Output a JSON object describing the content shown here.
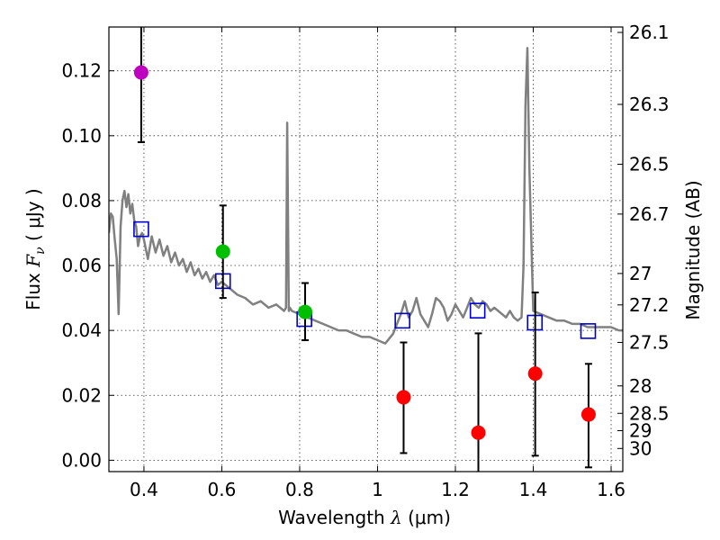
{
  "chart_data": {
    "type": "scatter",
    "xlabel_left": "Wavelength  ",
    "xlabel_lambda": "λ",
    "xlabel_unit": " (μm)",
    "ylabel_main": "Flux  ",
    "ylabel_symbol": "F",
    "ylabel_sub": "ν",
    "ylabel_unit": "  ( μJy )",
    "y2label": "Magnitude (AB)",
    "xlim": [
      0.31,
      1.63
    ],
    "ylim": [
      -0.0035,
      0.1335
    ],
    "xticks": [
      0.4,
      0.6,
      0.8,
      1.0,
      1.2,
      1.4,
      1.6
    ],
    "xtick_labels": [
      "0.4",
      "0.6",
      "0.8",
      "1",
      "1.2",
      "1.4",
      "1.6"
    ],
    "yticks": [
      0.0,
      0.02,
      0.04,
      0.06,
      0.08,
      0.1,
      0.12
    ],
    "ytick_labels": [
      "0.00",
      "0.02",
      "0.04",
      "0.06",
      "0.08",
      "0.10",
      "0.12"
    ],
    "mag_ticks": [
      26.1,
      26.3,
      26.5,
      26.7,
      27,
      27.2,
      27.5,
      28,
      28.5,
      29,
      30
    ],
    "mag_tick_labels": [
      "26.1",
      "26.3",
      "26.5",
      "26.7",
      "27",
      "27.2",
      "27.5",
      "28",
      "28.5",
      "29",
      "30"
    ],
    "grid": true,
    "colors": {
      "model": "#808080",
      "model_points": "#0000cc",
      "magenta": "#bf00bf",
      "green": "#00bf00",
      "red": "#ff0000",
      "errorbar": "#000000"
    },
    "series": [
      {
        "name": "model_spectrum",
        "style": "line",
        "x": [
          0.31,
          0.315,
          0.32,
          0.325,
          0.33,
          0.335,
          0.34,
          0.345,
          0.35,
          0.355,
          0.36,
          0.365,
          0.37,
          0.375,
          0.38,
          0.385,
          0.39,
          0.395,
          0.4,
          0.41,
          0.42,
          0.43,
          0.44,
          0.45,
          0.46,
          0.47,
          0.48,
          0.49,
          0.5,
          0.51,
          0.52,
          0.53,
          0.54,
          0.55,
          0.56,
          0.57,
          0.58,
          0.59,
          0.6,
          0.62,
          0.64,
          0.66,
          0.68,
          0.7,
          0.72,
          0.74,
          0.76,
          0.765,
          0.768,
          0.772,
          0.775,
          0.78,
          0.8,
          0.82,
          0.84,
          0.86,
          0.88,
          0.9,
          0.92,
          0.94,
          0.96,
          0.98,
          1.0,
          1.02,
          1.04,
          1.05,
          1.06,
          1.07,
          1.08,
          1.09,
          1.1,
          1.11,
          1.12,
          1.13,
          1.14,
          1.15,
          1.16,
          1.17,
          1.18,
          1.19,
          1.2,
          1.21,
          1.22,
          1.23,
          1.24,
          1.25,
          1.26,
          1.27,
          1.28,
          1.29,
          1.3,
          1.31,
          1.32,
          1.33,
          1.34,
          1.35,
          1.36,
          1.37,
          1.375,
          1.38,
          1.385,
          1.39,
          1.4,
          1.42,
          1.44,
          1.46,
          1.48,
          1.5,
          1.52,
          1.54,
          1.56,
          1.58,
          1.6,
          1.62,
          1.63
        ],
        "y": [
          0.07,
          0.076,
          0.075,
          0.068,
          0.062,
          0.045,
          0.072,
          0.08,
          0.083,
          0.078,
          0.082,
          0.076,
          0.079,
          0.074,
          0.072,
          0.066,
          0.069,
          0.07,
          0.068,
          0.062,
          0.069,
          0.064,
          0.068,
          0.063,
          0.066,
          0.061,
          0.064,
          0.06,
          0.062,
          0.058,
          0.061,
          0.057,
          0.059,
          0.056,
          0.058,
          0.055,
          0.057,
          0.054,
          0.055,
          0.053,
          0.051,
          0.05,
          0.048,
          0.049,
          0.047,
          0.048,
          0.046,
          0.047,
          0.104,
          0.046,
          0.047,
          0.046,
          0.045,
          0.044,
          0.043,
          0.042,
          0.041,
          0.04,
          0.04,
          0.039,
          0.038,
          0.038,
          0.037,
          0.036,
          0.039,
          0.042,
          0.045,
          0.049,
          0.044,
          0.046,
          0.05,
          0.045,
          0.043,
          0.041,
          0.045,
          0.05,
          0.049,
          0.047,
          0.043,
          0.045,
          0.048,
          0.046,
          0.044,
          0.047,
          0.05,
          0.048,
          0.047,
          0.049,
          0.048,
          0.046,
          0.047,
          0.046,
          0.045,
          0.044,
          0.046,
          0.044,
          0.043,
          0.044,
          0.06,
          0.11,
          0.127,
          0.09,
          0.046,
          0.045,
          0.044,
          0.043,
          0.043,
          0.042,
          0.042,
          0.041,
          0.041,
          0.041,
          0.041,
          0.04,
          0.04
        ]
      },
      {
        "name": "model_photometry",
        "style": "open_square",
        "x": [
          0.393,
          0.603,
          0.812,
          1.064,
          1.257,
          1.404,
          1.541
        ],
        "y": [
          0.0712,
          0.0552,
          0.0435,
          0.043,
          0.0461,
          0.0424,
          0.0398
        ]
      },
      {
        "name": "observed_magenta",
        "style": "filled_circle",
        "color_key": "magenta",
        "x": [
          0.393
        ],
        "y": [
          0.1195
        ],
        "err_low": [
          0.0215
        ],
        "err_high": [
          0.0165
        ]
      },
      {
        "name": "observed_green",
        "style": "filled_circle",
        "color_key": "green",
        "x": [
          0.603,
          0.814
        ],
        "y": [
          0.0643,
          0.0457
        ],
        "err_low": [
          0.0143,
          0.0087
        ],
        "err_high": [
          0.0142,
          0.0089
        ]
      },
      {
        "name": "observed_red",
        "style": "filled_circle",
        "color_key": "red",
        "x": [
          1.067,
          1.259,
          1.405,
          1.542
        ],
        "y": [
          0.0194,
          0.0085,
          0.0267,
          0.0141
        ],
        "err_low": [
          0.0172,
          0.0155,
          0.0253,
          0.0163
        ],
        "err_high": [
          0.0169,
          0.0306,
          0.025,
          0.0156
        ]
      }
    ]
  }
}
